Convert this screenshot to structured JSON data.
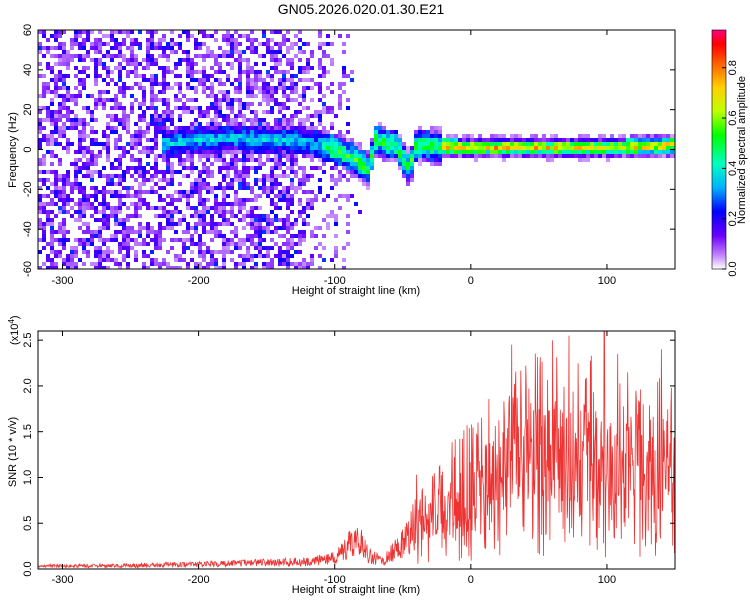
{
  "title": "GN05.2026.020.01.30.E21",
  "chart_data": [
    {
      "type": "heatmap",
      "name": "spectrogram",
      "xlabel": "Height of straight line (km)",
      "ylabel": "Frequency (Hz)",
      "xlim": [
        -318,
        150
      ],
      "ylim": [
        -60,
        60
      ],
      "xticks": [
        -300,
        -200,
        -100,
        0,
        100
      ],
      "yticks": [
        -60,
        -40,
        -20,
        0,
        20,
        40,
        60
      ],
      "colorbar": {
        "label": "Normalized spectral amplitude",
        "range": [
          0.0,
          0.95
        ],
        "ticks": [
          0.0,
          0.2,
          0.4,
          0.6,
          0.8
        ]
      },
      "signal_band_center_hz": [
        {
          "x": -225,
          "y": 3
        },
        {
          "x": -200,
          "y": 5
        },
        {
          "x": -175,
          "y": 6
        },
        {
          "x": -150,
          "y": 5
        },
        {
          "x": -120,
          "y": 4
        },
        {
          "x": -100,
          "y": 0
        },
        {
          "x": -85,
          "y": -5
        },
        {
          "x": -75,
          "y": -10
        },
        {
          "x": -70,
          "y": 5
        },
        {
          "x": -55,
          "y": 2
        },
        {
          "x": -45,
          "y": -10
        },
        {
          "x": -40,
          "y": 2
        },
        {
          "x": 0,
          "y": 1
        },
        {
          "x": 50,
          "y": 1
        },
        {
          "x": 100,
          "y": 1
        },
        {
          "x": 150,
          "y": 2
        }
      ],
      "noise_region_x": [
        -318,
        -120
      ]
    },
    {
      "type": "line",
      "name": "snr",
      "xlabel": "Height of straight line (km)",
      "ylabel": "SNR (10 * v/v)",
      "multiplier": "(x10",
      "multiplier_exp": "4",
      "multiplier_close": ")",
      "xlim": [
        -318,
        150
      ],
      "ylim": [
        0,
        2.6
      ],
      "xticks": [
        -300,
        -200,
        -100,
        0,
        100
      ],
      "yticks": [
        "0.0",
        "0.5",
        "1.0",
        "1.5",
        "2.0",
        "2.5"
      ],
      "color": "#ee3333",
      "envelope": [
        {
          "x": -318,
          "y": 0.03
        },
        {
          "x": -250,
          "y": 0.04
        },
        {
          "x": -200,
          "y": 0.05
        },
        {
          "x": -150,
          "y": 0.07
        },
        {
          "x": -120,
          "y": 0.08
        },
        {
          "x": -100,
          "y": 0.12
        },
        {
          "x": -90,
          "y": 0.25
        },
        {
          "x": -82,
          "y": 0.35
        },
        {
          "x": -75,
          "y": 0.15
        },
        {
          "x": -65,
          "y": 0.08
        },
        {
          "x": -50,
          "y": 0.3
        },
        {
          "x": -40,
          "y": 0.5
        },
        {
          "x": -20,
          "y": 0.7
        },
        {
          "x": 0,
          "y": 0.9
        },
        {
          "x": 20,
          "y": 1.1
        },
        {
          "x": 50,
          "y": 1.3
        },
        {
          "x": 80,
          "y": 1.3
        },
        {
          "x": 110,
          "y": 1.2
        },
        {
          "x": 150,
          "y": 1.1
        }
      ],
      "peaks": [
        {
          "x": -40,
          "y": 1.03
        },
        {
          "x": 30,
          "y": 2.45
        },
        {
          "x": 60,
          "y": 2.5
        },
        {
          "x": 72,
          "y": 2.55
        },
        {
          "x": 98,
          "y": 2.6
        },
        {
          "x": 108,
          "y": 2.35
        },
        {
          "x": 140,
          "y": 2.4
        }
      ]
    }
  ]
}
